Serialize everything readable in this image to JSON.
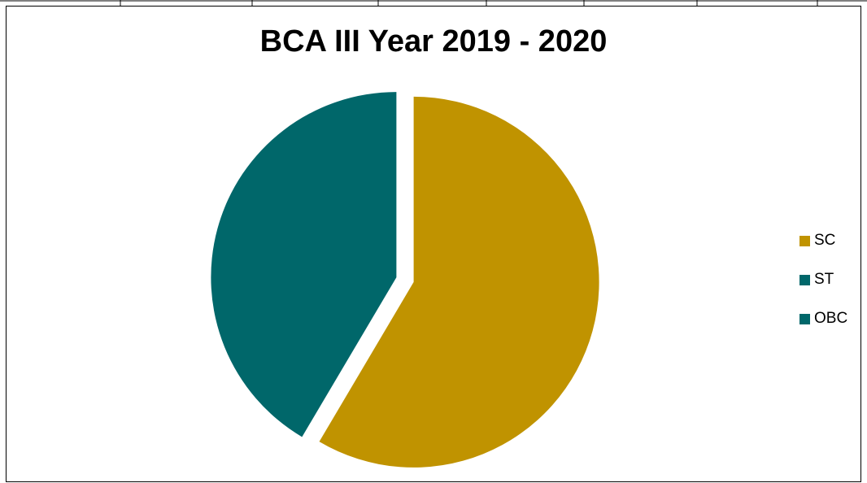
{
  "chart_data": {
    "type": "pie",
    "title": "BCA III Year 2019 - 2020",
    "categories": [
      "SC",
      "ST",
      "OBC"
    ],
    "values": [
      58.5,
      0,
      41.5
    ],
    "colors": [
      "#C09300",
      "#00676A",
      "#00676A"
    ],
    "exploded": true,
    "legend_position": "right"
  }
}
